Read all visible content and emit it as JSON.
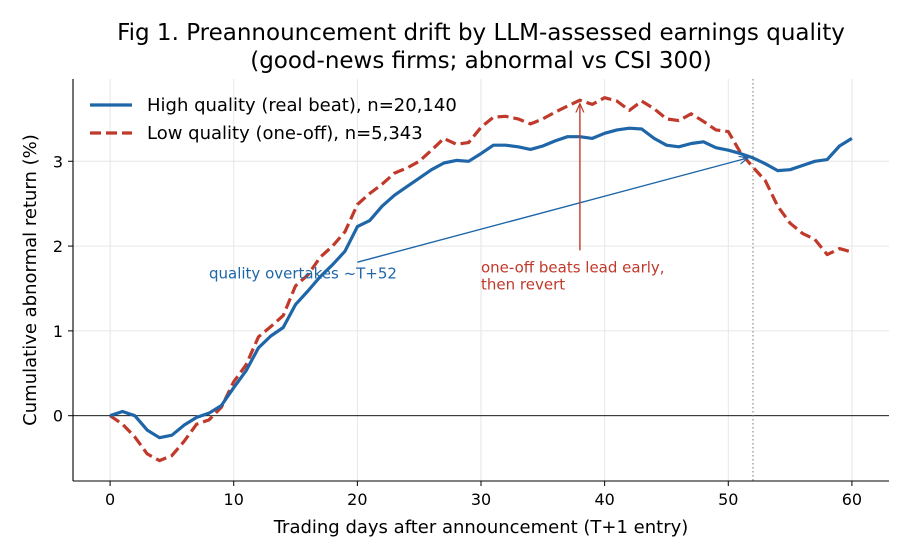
{
  "chart_data": {
    "type": "line",
    "title_line1": "Fig 1. Preannouncement drift by LLM-assessed earnings quality",
    "title_line2": "(good-news firms; abnormal vs CSI 300)",
    "xlabel": "Trading days after announcement (T+1 entry)",
    "ylabel": "Cumulative abnormal return (%)",
    "xlim": [
      -3,
      63
    ],
    "ylim": [
      -0.77,
      3.97
    ],
    "xticks": [
      0,
      10,
      20,
      30,
      40,
      50,
      60
    ],
    "yticks": [
      0,
      1,
      2,
      3
    ],
    "grid": true,
    "legend_position": "upper-left",
    "crossover_x": 52,
    "series": [
      {
        "name": "High quality (real beat), n=20,140",
        "color": "#1f66a8",
        "style": "solid",
        "x": [
          0,
          1,
          2,
          3,
          4,
          5,
          6,
          7,
          8,
          9,
          10,
          11,
          12,
          13,
          14,
          15,
          16,
          17,
          18,
          19,
          20,
          21,
          22,
          23,
          24,
          25,
          26,
          27,
          28,
          29,
          30,
          31,
          32,
          33,
          34,
          35,
          36,
          37,
          38,
          39,
          40,
          41,
          42,
          43,
          44,
          45,
          46,
          47,
          48,
          49,
          50,
          51,
          52,
          53,
          54,
          55,
          56,
          57,
          58,
          59,
          60
        ],
        "y": [
          0,
          0.05,
          0,
          -0.17,
          -0.26,
          -0.23,
          -0.11,
          -0.02,
          0.03,
          0.12,
          0.33,
          0.53,
          0.8,
          0.94,
          1.04,
          1.31,
          1.47,
          1.64,
          1.78,
          1.94,
          2.23,
          2.3,
          2.47,
          2.6,
          2.7,
          2.8,
          2.9,
          2.98,
          3.01,
          3.0,
          3.09,
          3.19,
          3.19,
          3.17,
          3.14,
          3.18,
          3.24,
          3.29,
          3.29,
          3.27,
          3.33,
          3.37,
          3.39,
          3.38,
          3.27,
          3.19,
          3.17,
          3.21,
          3.23,
          3.16,
          3.13,
          3.09,
          3.04,
          2.97,
          2.89,
          2.9,
          2.95,
          3.0,
          3.02,
          3.18,
          3.27
        ]
      },
      {
        "name": "Low quality (one-off), n=5,343",
        "color": "#c0392b",
        "style": "dashed",
        "x": [
          0,
          1,
          2,
          3,
          4,
          5,
          6,
          7,
          8,
          9,
          10,
          11,
          12,
          13,
          14,
          15,
          16,
          17,
          18,
          19,
          20,
          21,
          22,
          23,
          24,
          25,
          26,
          27,
          28,
          29,
          30,
          31,
          32,
          33,
          34,
          35,
          36,
          37,
          38,
          39,
          40,
          41,
          42,
          43,
          44,
          45,
          46,
          47,
          48,
          49,
          50,
          51,
          52,
          53,
          54,
          55,
          56,
          57,
          58,
          59,
          60
        ],
        "y": [
          0,
          -0.1,
          -0.25,
          -0.45,
          -0.53,
          -0.47,
          -0.3,
          -0.1,
          -0.05,
          0.1,
          0.4,
          0.6,
          0.93,
          1.05,
          1.18,
          1.53,
          1.66,
          1.87,
          2.0,
          2.17,
          2.49,
          2.62,
          2.73,
          2.86,
          2.92,
          3.0,
          3.13,
          3.27,
          3.2,
          3.22,
          3.4,
          3.52,
          3.53,
          3.5,
          3.44,
          3.5,
          3.58,
          3.65,
          3.72,
          3.67,
          3.75,
          3.71,
          3.6,
          3.71,
          3.62,
          3.5,
          3.48,
          3.56,
          3.47,
          3.37,
          3.35,
          3.1,
          2.93,
          2.77,
          2.47,
          2.27,
          2.15,
          2.08,
          1.9,
          1.97,
          1.93
        ]
      }
    ],
    "annotations": [
      {
        "id": "quality",
        "text_lines": [
          "quality overtakes ~T+52"
        ],
        "color": "#1f66a8",
        "text_x": 8,
        "text_y": 1.62,
        "arrow_from": [
          20,
          1.81
        ],
        "arrow_to": [
          51.6,
          3.04
        ]
      },
      {
        "id": "oneoff",
        "text_lines": [
          "one-off beats lead early,",
          "then revert"
        ],
        "color": "#c0392b",
        "text_x": 30,
        "text_y": 1.69,
        "arrow_from": [
          38,
          1.95
        ],
        "arrow_to": [
          38,
          3.68
        ]
      }
    ]
  }
}
